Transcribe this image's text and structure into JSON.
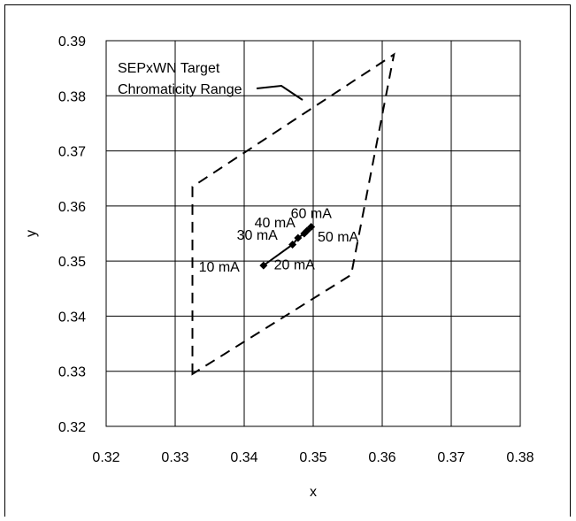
{
  "chart_data": {
    "type": "scatter",
    "xlabel": "x",
    "ylabel": "y",
    "xlim": [
      0.32,
      0.38
    ],
    "ylim": [
      0.32,
      0.39
    ],
    "x_ticks": [
      "0.32",
      "0.33",
      "0.34",
      "0.35",
      "0.36",
      "0.37",
      "0.38"
    ],
    "y_ticks": [
      "0.32",
      "0.33",
      "0.34",
      "0.35",
      "0.36",
      "0.37",
      "0.38",
      "0.39"
    ],
    "grid": true,
    "region": {
      "name": "SEPxWN Target Chromaticity Range",
      "style": "dashed",
      "vertices": [
        [
          0.3325,
          0.3295
        ],
        [
          0.3325,
          0.3635
        ],
        [
          0.3617,
          0.3875
        ],
        [
          0.3555,
          0.3475
        ]
      ]
    },
    "series": [
      {
        "points": [
          {
            "x": 0.3428,
            "y": 0.3492,
            "label": "10 mA"
          },
          {
            "x": 0.347,
            "y": 0.353,
            "label": "20 mA"
          },
          {
            "x": 0.3478,
            "y": 0.3542,
            "label": "30 mA"
          },
          {
            "x": 0.3487,
            "y": 0.355,
            "label": "40 mA"
          },
          {
            "x": 0.3491,
            "y": 0.3555,
            "label": "50 mA"
          },
          {
            "x": 0.3497,
            "y": 0.3562,
            "label": "60 mA"
          }
        ],
        "marker": "diamond",
        "color": "#000000"
      }
    ],
    "annotations": {
      "region_label_line1": "SEPxWN Target",
      "region_label_line2": "Chromaticity Range"
    }
  }
}
